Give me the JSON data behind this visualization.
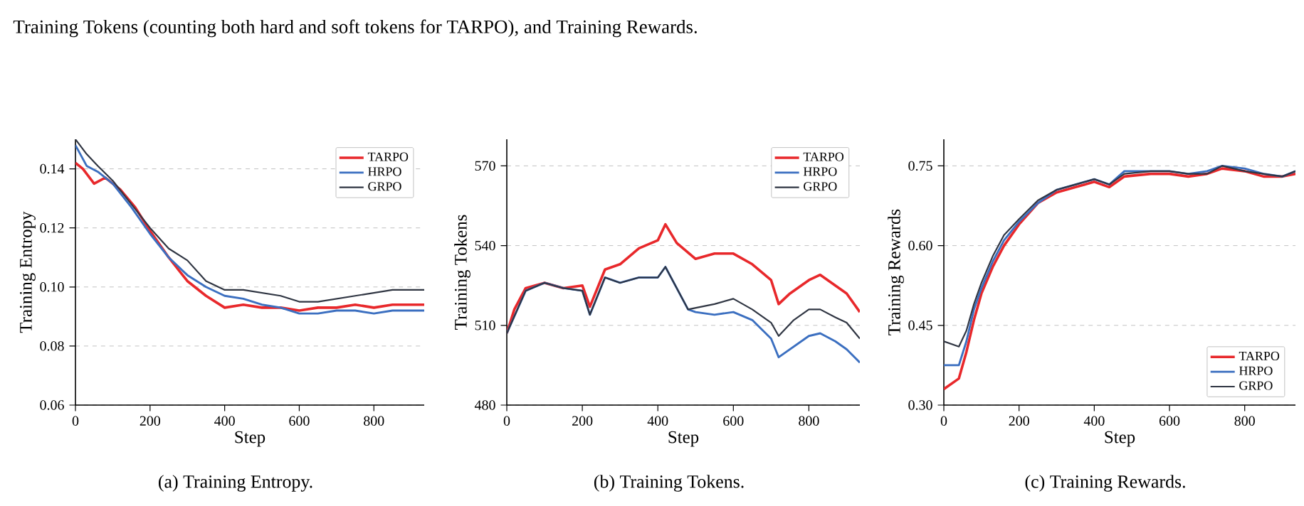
{
  "chart_data": [
    {
      "type": "line",
      "xlabel": "Step",
      "ylabel": "Training Entropy",
      "xlim": [
        0,
        935
      ],
      "ylim": [
        0.06,
        0.15
      ],
      "xticks": [
        0,
        200,
        400,
        600,
        800
      ],
      "yticks": [
        0.06,
        0.08,
        {
          "value": 0.1,
          "label": "0.10"
        },
        0.12,
        0.14
      ],
      "grid": "y",
      "legend": "top right",
      "marker": "none",
      "line_style": "solid",
      "annotations": [
        "Training Tokens (counting both hard and soft tokens for TARPO), and Training Rewards.",
        "(a) Training Entropy."
      ],
      "series": [
        {
          "name": "TARPO",
          "color": "#e8282b",
          "x": [
            0,
            20,
            50,
            80,
            120,
            160,
            200,
            250,
            300,
            350,
            400,
            450,
            500,
            550,
            600,
            650,
            700,
            750,
            800,
            850,
            900,
            935
          ],
          "values": [
            0.142,
            0.14,
            0.135,
            0.137,
            0.133,
            0.127,
            0.119,
            0.11,
            0.102,
            0.097,
            0.093,
            0.094,
            0.093,
            0.093,
            0.092,
            0.093,
            0.093,
            0.094,
            0.093,
            0.094,
            0.094,
            0.094
          ]
        },
        {
          "name": "HRPO",
          "color": "#3b6fc0",
          "x": [
            0,
            30,
            60,
            100,
            150,
            200,
            250,
            300,
            350,
            400,
            450,
            500,
            550,
            600,
            650,
            700,
            750,
            800,
            850,
            900,
            935
          ],
          "values": [
            0.148,
            0.141,
            0.139,
            0.135,
            0.127,
            0.118,
            0.11,
            0.104,
            0.1,
            0.097,
            0.096,
            0.094,
            0.093,
            0.091,
            0.091,
            0.092,
            0.092,
            0.091,
            0.092,
            0.092,
            0.092
          ]
        },
        {
          "name": "GRPO",
          "color": "#2f3542",
          "x": [
            0,
            30,
            60,
            100,
            150,
            200,
            250,
            300,
            350,
            400,
            450,
            500,
            550,
            600,
            650,
            700,
            750,
            800,
            850,
            900,
            935
          ],
          "values": [
            0.15,
            0.145,
            0.141,
            0.136,
            0.128,
            0.12,
            0.113,
            0.109,
            0.102,
            0.099,
            0.099,
            0.098,
            0.097,
            0.095,
            0.095,
            0.096,
            0.097,
            0.098,
            0.099,
            0.099,
            0.099
          ]
        }
      ]
    },
    {
      "type": "line",
      "xlabel": "Step",
      "ylabel": "Training Tokens",
      "xlim": [
        0,
        935
      ],
      "ylim": [
        480,
        580
      ],
      "xticks": [
        0,
        200,
        400,
        600,
        800
      ],
      "yticks": [
        480,
        510,
        540,
        570
      ],
      "grid": "y",
      "legend": "top right",
      "marker": "none",
      "line_style": "solid",
      "annotations": [
        "(b) Training Tokens."
      ],
      "series": [
        {
          "name": "TARPO",
          "color": "#e8282b",
          "x": [
            0,
            20,
            50,
            100,
            150,
            200,
            220,
            260,
            300,
            350,
            400,
            420,
            450,
            500,
            550,
            600,
            650,
            700,
            720,
            750,
            800,
            830,
            870,
            900,
            935
          ],
          "values": [
            507,
            516,
            524,
            526,
            524,
            525,
            517,
            531,
            533,
            539,
            542,
            548,
            541,
            535,
            537,
            537,
            533,
            527,
            518,
            522,
            527,
            529,
            525,
            522,
            515
          ]
        },
        {
          "name": "HRPO",
          "color": "#3b6fc0",
          "x": [
            0,
            50,
            100,
            150,
            200,
            220,
            260,
            300,
            350,
            400,
            420,
            450,
            480,
            500,
            550,
            600,
            650,
            700,
            720,
            760,
            800,
            830,
            870,
            900,
            935
          ],
          "values": [
            507,
            523,
            526,
            524,
            523,
            514,
            528,
            526,
            528,
            528,
            532,
            524,
            516,
            515,
            514,
            515,
            512,
            505,
            498,
            502,
            506,
            507,
            504,
            501,
            496
          ]
        },
        {
          "name": "GRPO",
          "color": "#2f3542",
          "x": [
            0,
            50,
            100,
            150,
            200,
            220,
            260,
            300,
            350,
            400,
            420,
            450,
            480,
            550,
            600,
            650,
            700,
            720,
            760,
            800,
            830,
            870,
            900,
            935
          ],
          "values": [
            507,
            523,
            526,
            524,
            523,
            514,
            528,
            526,
            528,
            528,
            532,
            524,
            516,
            518,
            520,
            516,
            511,
            506,
            512,
            516,
            516,
            513,
            511,
            505
          ]
        }
      ]
    },
    {
      "type": "line",
      "xlabel": "Step",
      "ylabel": "Training Rewards",
      "xlim": [
        0,
        935
      ],
      "ylim": [
        0.3,
        0.8
      ],
      "xticks": [
        0,
        200,
        400,
        600,
        800
      ],
      "yticks": [
        {
          "value": 0.3,
          "label": "0.30"
        },
        0.45,
        {
          "value": 0.6,
          "label": "0.60"
        },
        0.75
      ],
      "grid": "y",
      "legend": "bottom right",
      "marker": "none",
      "line_style": "solid",
      "annotations": [
        "(c) Training Rewards."
      ],
      "series": [
        {
          "name": "TARPO",
          "color": "#e8282b",
          "x": [
            0,
            40,
            60,
            80,
            100,
            130,
            160,
            200,
            250,
            300,
            350,
            400,
            440,
            480,
            550,
            600,
            650,
            700,
            740,
            800,
            850,
            900,
            935
          ],
          "values": [
            0.33,
            0.35,
            0.4,
            0.46,
            0.51,
            0.56,
            0.6,
            0.64,
            0.68,
            0.7,
            0.71,
            0.72,
            0.71,
            0.73,
            0.735,
            0.735,
            0.73,
            0.735,
            0.745,
            0.74,
            0.73,
            0.73,
            0.735
          ]
        },
        {
          "name": "HRPO",
          "color": "#3b6fc0",
          "x": [
            0,
            40,
            60,
            80,
            100,
            130,
            160,
            200,
            250,
            300,
            350,
            400,
            440,
            480,
            550,
            600,
            650,
            700,
            740,
            800,
            850,
            900,
            935
          ],
          "values": [
            0.375,
            0.375,
            0.42,
            0.48,
            0.52,
            0.57,
            0.61,
            0.645,
            0.68,
            0.705,
            0.715,
            0.725,
            0.715,
            0.74,
            0.74,
            0.74,
            0.735,
            0.74,
            0.75,
            0.745,
            0.735,
            0.73,
            0.74
          ]
        },
        {
          "name": "GRPO",
          "color": "#2f3542",
          "x": [
            0,
            40,
            60,
            80,
            100,
            130,
            160,
            200,
            250,
            300,
            350,
            400,
            440,
            480,
            550,
            600,
            650,
            700,
            740,
            800,
            850,
            900,
            935
          ],
          "values": [
            0.42,
            0.41,
            0.44,
            0.49,
            0.53,
            0.58,
            0.62,
            0.65,
            0.685,
            0.705,
            0.715,
            0.725,
            0.715,
            0.735,
            0.74,
            0.74,
            0.735,
            0.735,
            0.75,
            0.74,
            0.735,
            0.73,
            0.74
          ]
        }
      ]
    }
  ]
}
